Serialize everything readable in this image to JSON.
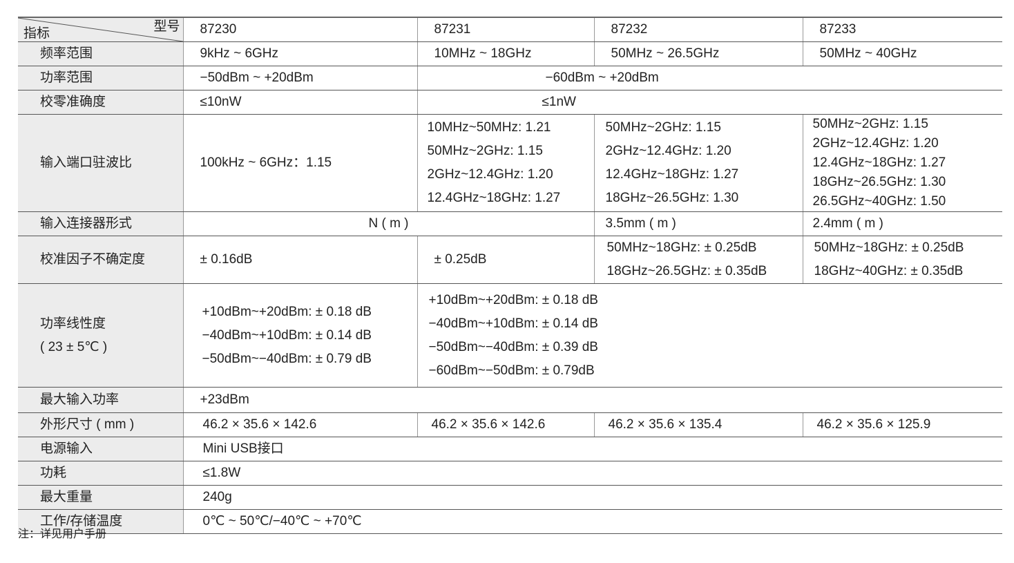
{
  "header": {
    "corner_left": "指标",
    "corner_right": "型号",
    "models": [
      "87230",
      "87231",
      "87232",
      "87233"
    ]
  },
  "rows": {
    "freq": {
      "label": "频率范围",
      "values": [
        "9kHz ~ 6GHz",
        "10MHz ~ 18GHz",
        "50MHz ~ 26.5GHz",
        "50MHz ~ 40GHz"
      ]
    },
    "power": {
      "label": "功率范围",
      "c1": "−50dBm ~ +20dBm",
      "rest": "−60dBm ~ +20dBm"
    },
    "zero": {
      "label": "校零准确度",
      "c1": "≤10nW",
      "rest": "≤1nW"
    },
    "vswr": {
      "label": "输入端口驻波比",
      "c1": [
        "100kHz ~ 6GHz：1.15"
      ],
      "c2": [
        "10MHz~50MHz:  1.21",
        "50MHz~2GHz:   1.15",
        "2GHz~12.4GHz:  1.20",
        "12.4GHz~18GHz: 1.27"
      ],
      "c3": [
        "50MHz~2GHz:    1.15",
        "2GHz~12.4GHz:   1.20",
        "12.4GHz~18GHz:  1.27",
        "18GHz~26.5GHz:  1.30"
      ],
      "c4": [
        "50MHz~2GHz:    1.15",
        "2GHz~12.4GHz:   1.20",
        "12.4GHz~18GHz:  1.27",
        "18GHz~26.5GHz:  1.30",
        "26.5GHz~40GHz:  1.50"
      ]
    },
    "connector": {
      "label": "输入连接器形式",
      "c12": "N ( m )",
      "c3": "3.5mm ( m )",
      "c4": "2.4mm ( m )"
    },
    "calfactor": {
      "label": "校准因子不确定度",
      "c1": "± 0.16dB",
      "c2": "± 0.25dB",
      "c3": [
        "50MHz~18GHz: ± 0.25dB",
        "18GHz~26.5GHz: ± 0.35dB"
      ],
      "c4": [
        "50MHz~18GHz: ± 0.25dB",
        "18GHz~40GHz: ± 0.35dB"
      ]
    },
    "linearity": {
      "label": "功率线性度",
      "label2": "( 23 ± 5℃ )",
      "c1": [
        "+10dBm~+20dBm: ± 0.18 dB",
        "−40dBm~+10dBm: ± 0.14 dB",
        "−50dBm~−40dBm: ± 0.79 dB"
      ],
      "rest": [
        "+10dBm~+20dBm: ± 0.18 dB",
        "−40dBm~+10dBm: ± 0.14 dB",
        "−50dBm~−40dBm: ± 0.39 dB",
        "−60dBm~−50dBm: ± 0.79dB"
      ]
    },
    "maxin": {
      "label": "最大输入功率",
      "value": "+23dBm"
    },
    "size": {
      "label": "外形尺寸 ( mm )",
      "values": [
        "46.2 × 35.6 × 142.6",
        "46.2  × 35.6  × 142.6",
        "46.2 × 35.6 × 135.4",
        "46.2 × 35.6 × 125.9"
      ]
    },
    "supply": {
      "label": "电源输入",
      "value": "Mini USB接口"
    },
    "consumption": {
      "label": "功耗",
      "value": "≤1.8W"
    },
    "weight": {
      "label": "最大重量",
      "value": "240g"
    },
    "temp": {
      "label": "工作/存储温度",
      "value": "0℃ ~ 50℃/−40℃ ~ +70℃"
    }
  },
  "note": "注：详见用户手册"
}
